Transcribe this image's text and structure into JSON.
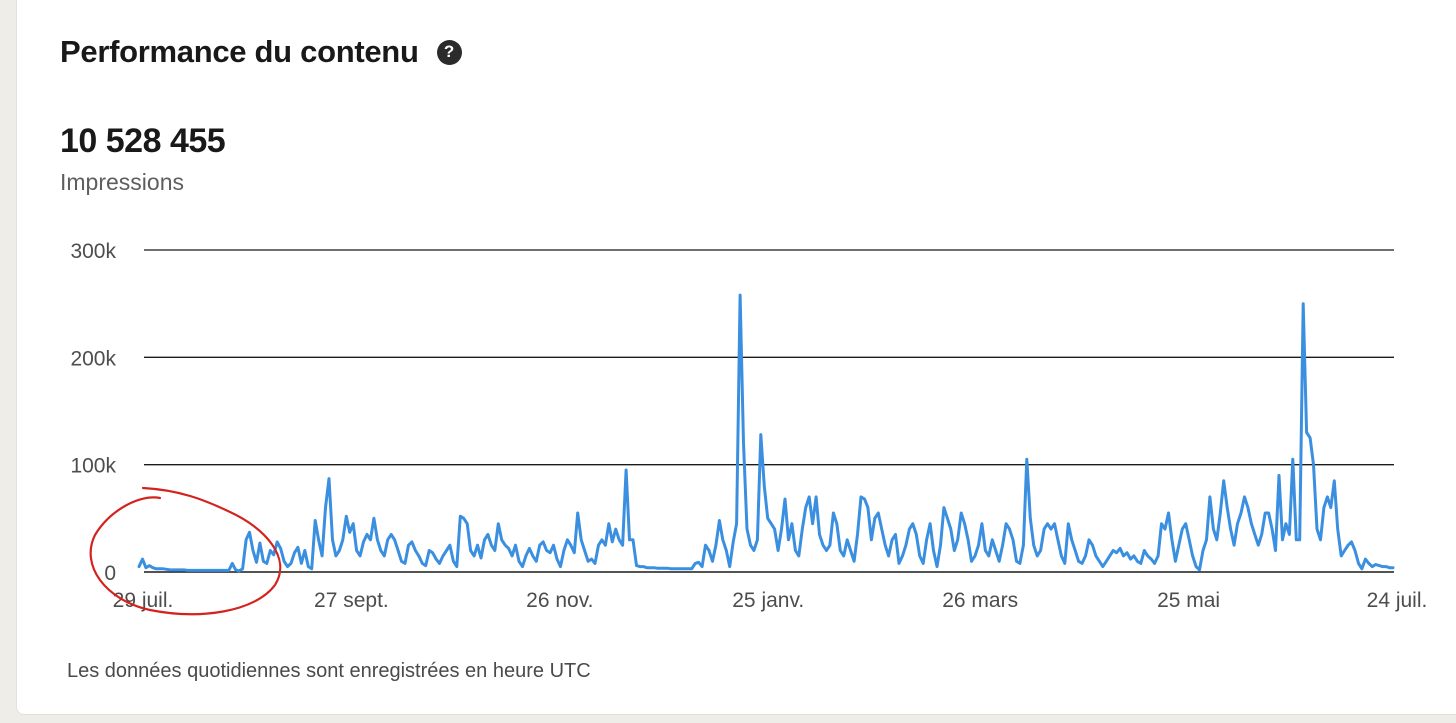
{
  "header": {
    "title": "Performance du contenu",
    "help_icon": "question-circle-icon"
  },
  "summary": {
    "total": "10 528 455",
    "metric_label": "Impressions"
  },
  "footnote": "Les données quotidiennes sont enregistrées en heure UTC",
  "colors": {
    "line": "#3b8fe0",
    "annotation": "#d4231e"
  },
  "chart_data": {
    "type": "line",
    "title": "",
    "xlabel": "",
    "ylabel": "",
    "ylim": [
      0,
      300000
    ],
    "yticks": [
      {
        "value": 0,
        "label": "0"
      },
      {
        "value": 100000,
        "label": "100k"
      },
      {
        "value": 200000,
        "label": "200k"
      },
      {
        "value": 300000,
        "label": "300k"
      }
    ],
    "xticks": [
      {
        "date": "2023-07-29",
        "label": "29 juil."
      },
      {
        "date": "2023-09-27",
        "label": "27 sept."
      },
      {
        "date": "2023-11-26",
        "label": "26 nov."
      },
      {
        "date": "2024-01-25",
        "label": "25 janv."
      },
      {
        "date": "2024-03-26",
        "label": "26 mars"
      },
      {
        "date": "2024-05-25",
        "label": "25 mai"
      },
      {
        "date": "2024-07-24",
        "label": "24 juil."
      }
    ],
    "grid": true,
    "legend": "none",
    "annotation": "red hand-drawn circle around the low-impression period at the start",
    "series": [
      {
        "date_start": "2023-07-29",
        "date_end": "2024-07-24",
        "values": [
          5000,
          12000,
          4000,
          6000,
          4000,
          3000,
          3000,
          3000,
          2500,
          2000,
          2000,
          2000,
          2000,
          2000,
          1500,
          1500,
          1500,
          1500,
          1500,
          1500,
          1500,
          1500,
          1500,
          1500,
          1500,
          1500,
          1500,
          8000,
          2000,
          1000,
          3000,
          30000,
          37000,
          20000,
          9000,
          27000,
          10000,
          8000,
          20000,
          16000,
          28000,
          22000,
          10000,
          5000,
          8000,
          18000,
          23000,
          8000,
          20000,
          5000,
          3000,
          48000,
          30000,
          15000,
          60000,
          87000,
          30000,
          15000,
          20000,
          30000,
          52000,
          37000,
          45000,
          20000,
          15000,
          28000,
          35000,
          30000,
          50000,
          30000,
          20000,
          15000,
          30000,
          35000,
          30000,
          20000,
          10000,
          8000,
          25000,
          28000,
          20000,
          15000,
          8000,
          6000,
          20000,
          18000,
          12000,
          8000,
          15000,
          20000,
          25000,
          10000,
          5000,
          52000,
          50000,
          45000,
          20000,
          15000,
          25000,
          13000,
          30000,
          35000,
          25000,
          20000,
          45000,
          30000,
          25000,
          22000,
          15000,
          25000,
          10000,
          5000,
          15000,
          22000,
          15000,
          10000,
          25000,
          28000,
          20000,
          18000,
          25000,
          12000,
          5000,
          20000,
          30000,
          25000,
          18000,
          55000,
          30000,
          20000,
          10000,
          12000,
          8000,
          25000,
          30000,
          25000,
          45000,
          28000,
          40000,
          30000,
          25000,
          95000,
          30000,
          30000,
          6000,
          5000,
          5000,
          4000,
          4000,
          4000,
          3500,
          3500,
          3500,
          3500,
          3000,
          3000,
          3000,
          3000,
          3000,
          3000,
          3000,
          8000,
          9000,
          5000,
          25000,
          20000,
          10000,
          25000,
          48000,
          30000,
          20000,
          5000,
          28000,
          45000,
          258000,
          120000,
          40000,
          25000,
          20000,
          30000,
          128000,
          80000,
          50000,
          45000,
          40000,
          20000,
          40000,
          68000,
          30000,
          45000,
          20000,
          15000,
          40000,
          60000,
          70000,
          45000,
          70000,
          35000,
          25000,
          20000,
          25000,
          55000,
          45000,
          20000,
          15000,
          30000,
          20000,
          10000,
          35000,
          70000,
          68000,
          60000,
          30000,
          50000,
          55000,
          40000,
          25000,
          15000,
          30000,
          35000,
          8000,
          15000,
          25000,
          40000,
          45000,
          35000,
          15000,
          8000,
          30000,
          45000,
          20000,
          5000,
          25000,
          60000,
          50000,
          40000,
          20000,
          30000,
          55000,
          45000,
          30000,
          10000,
          15000,
          25000,
          45000,
          20000,
          15000,
          30000,
          20000,
          10000,
          25000,
          45000,
          40000,
          30000,
          10000,
          8000,
          25000,
          105000,
          50000,
          25000,
          15000,
          20000,
          40000,
          45000,
          40000,
          45000,
          30000,
          15000,
          8000,
          45000,
          30000,
          20000,
          10000,
          8000,
          15000,
          30000,
          25000,
          15000,
          10000,
          5000,
          10000,
          15000,
          20000,
          18000,
          22000,
          15000,
          18000,
          12000,
          15000,
          10000,
          8000,
          20000,
          15000,
          12000,
          8000,
          15000,
          45000,
          40000,
          55000,
          30000,
          10000,
          25000,
          40000,
          45000,
          30000,
          15000,
          5000,
          2000,
          20000,
          30000,
          70000,
          40000,
          30000,
          55000,
          85000,
          60000,
          40000,
          25000,
          45000,
          55000,
          70000,
          60000,
          45000,
          35000,
          25000,
          35000,
          55000,
          55000,
          40000,
          20000,
          90000,
          30000,
          45000,
          35000,
          105000,
          30000,
          30000,
          250000,
          130000,
          125000,
          100000,
          40000,
          30000,
          60000,
          70000,
          60000,
          85000,
          40000,
          15000,
          20000,
          25000,
          28000,
          20000,
          8000,
          3000,
          12000,
          8000,
          5000,
          7000,
          6000,
          5000,
          5000,
          4000,
          4000
        ]
      }
    ]
  }
}
